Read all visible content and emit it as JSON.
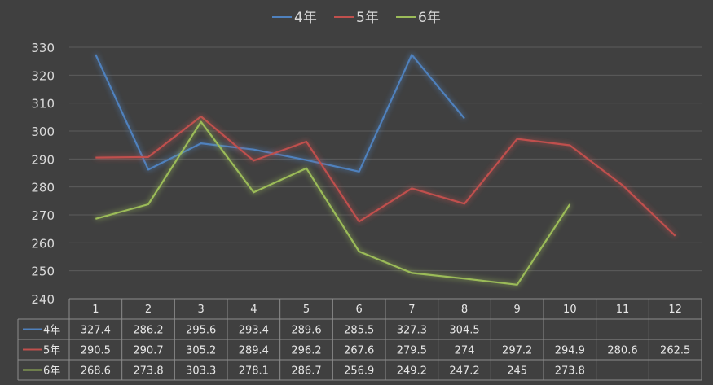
{
  "chart_data": {
    "type": "line",
    "categories": [
      "1",
      "2",
      "3",
      "4",
      "5",
      "6",
      "7",
      "8",
      "9",
      "10",
      "11",
      "12"
    ],
    "series": [
      {
        "name": "4年",
        "color": "#4f81bd",
        "values": [
          327.4,
          286.2,
          295.6,
          293.4,
          289.6,
          285.5,
          327.3,
          304.5,
          null,
          null,
          null,
          null
        ]
      },
      {
        "name": "5年",
        "color": "#c0504d",
        "values": [
          290.5,
          290.7,
          305.2,
          289.4,
          296.2,
          267.6,
          279.5,
          274,
          297.2,
          294.9,
          280.6,
          262.5
        ]
      },
      {
        "name": "6年",
        "color": "#9bbb59",
        "values": [
          268.6,
          273.8,
          303.3,
          278.1,
          286.7,
          256.9,
          249.2,
          247.2,
          245,
          273.8,
          null,
          null
        ]
      }
    ],
    "y_ticks": [
      "240",
      "250",
      "260",
      "270",
      "280",
      "290",
      "300",
      "310",
      "320",
      "330"
    ],
    "ylim": [
      240,
      330
    ],
    "grid": true,
    "legend": "top-center",
    "data_table": true
  }
}
